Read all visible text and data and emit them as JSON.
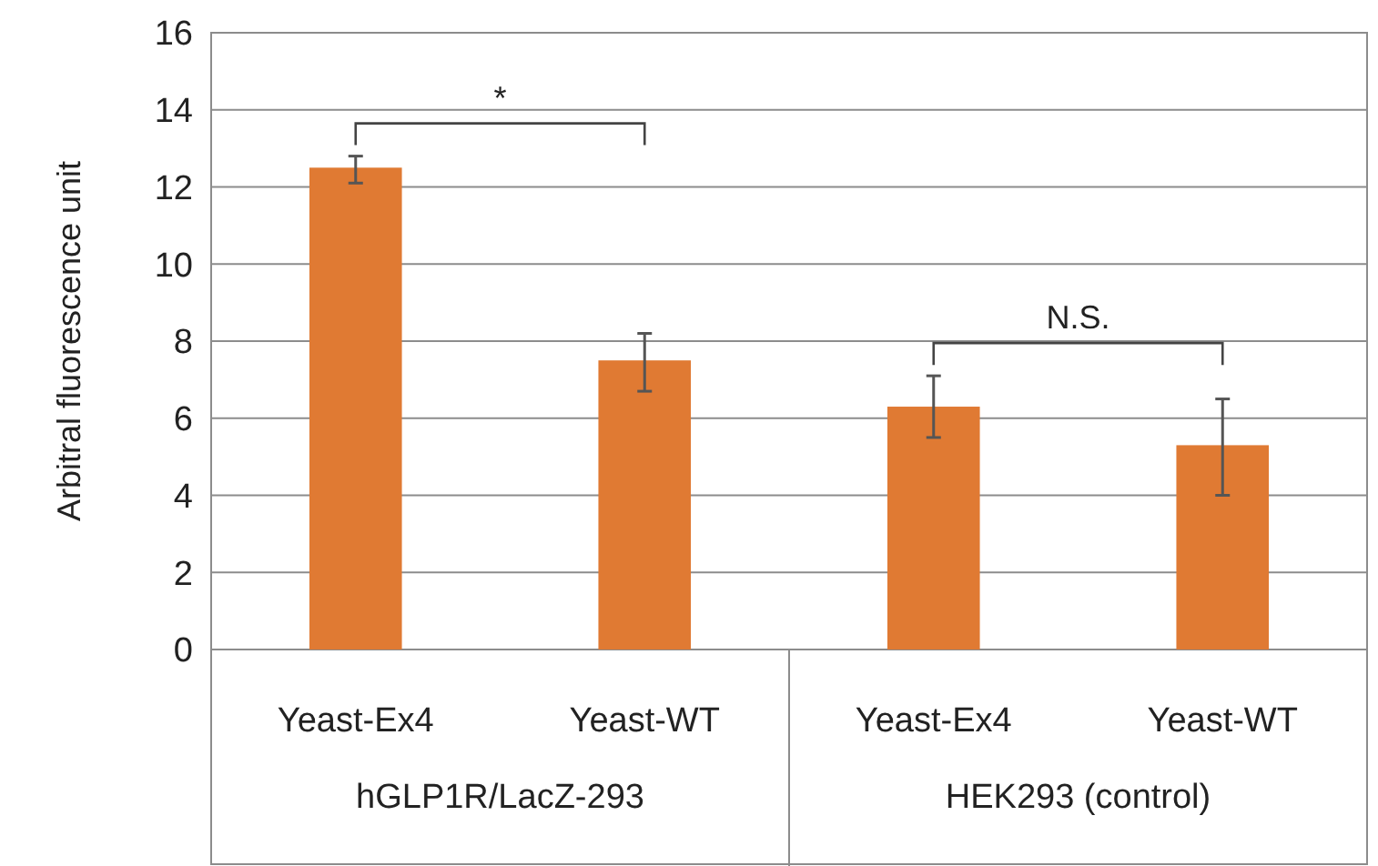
{
  "chart_data": {
    "type": "bar",
    "ylabel": "Arbitral fluorescence unit",
    "categories": [
      "Yeast-Ex4",
      "Yeast-WT",
      "Yeast-Ex4",
      "Yeast-WT"
    ],
    "values": [
      12.5,
      7.5,
      6.3,
      5.3
    ],
    "errors": [
      [
        12.1,
        12.8
      ],
      [
        6.7,
        8.2
      ],
      [
        5.5,
        7.1
      ],
      [
        4.0,
        6.5
      ]
    ],
    "color": "#e07a33",
    "ylim": [
      0,
      16
    ],
    "yticks": [
      0,
      2,
      4,
      6,
      8,
      10,
      12,
      14,
      16
    ],
    "grid": "y",
    "annotations": [
      "*",
      "N.S.",
      "hGLP1R/LacZ-293",
      "HEK293 (control)"
    ]
  }
}
